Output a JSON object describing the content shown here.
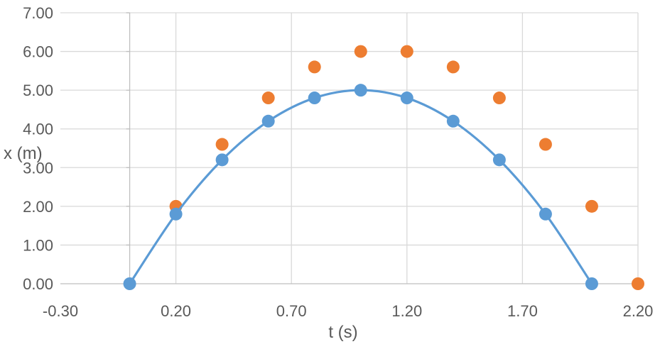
{
  "chart_data": {
    "type": "scatter",
    "title": "",
    "xlabel": "t (s)",
    "ylabel": "x (m)",
    "xlim": [
      -0.3,
      2.2
    ],
    "ylim": [
      0.0,
      7.0
    ],
    "x_ticks": [
      "-0.30",
      "0.20",
      "0.70",
      "1.20",
      "1.70",
      "2.20"
    ],
    "y_ticks": [
      "0.00",
      "1.00",
      "2.00",
      "3.00",
      "4.00",
      "5.00",
      "6.00",
      "7.00"
    ],
    "grid": true,
    "legend": "none",
    "series": [
      {
        "color": "#5b9bd5",
        "smooth_line": true,
        "points": [
          [
            0.0,
            0.0
          ],
          [
            0.2,
            1.8
          ],
          [
            0.4,
            3.2
          ],
          [
            0.6,
            4.2
          ],
          [
            0.8,
            4.8
          ],
          [
            1.0,
            5.0
          ],
          [
            1.2,
            4.8
          ],
          [
            1.4,
            4.2
          ],
          [
            1.6,
            3.2
          ],
          [
            1.8,
            1.8
          ],
          [
            2.0,
            0.0
          ]
        ]
      },
      {
        "color": "#ed7d31",
        "smooth_line": false,
        "points": [
          [
            0.2,
            2.0
          ],
          [
            0.4,
            3.6
          ],
          [
            0.6,
            4.8
          ],
          [
            0.8,
            5.6
          ],
          [
            1.0,
            6.0
          ],
          [
            1.2,
            6.0
          ],
          [
            1.4,
            5.6
          ],
          [
            1.6,
            4.8
          ],
          [
            1.8,
            3.6
          ],
          [
            2.0,
            2.0
          ],
          [
            2.2,
            0.0
          ]
        ]
      }
    ]
  }
}
